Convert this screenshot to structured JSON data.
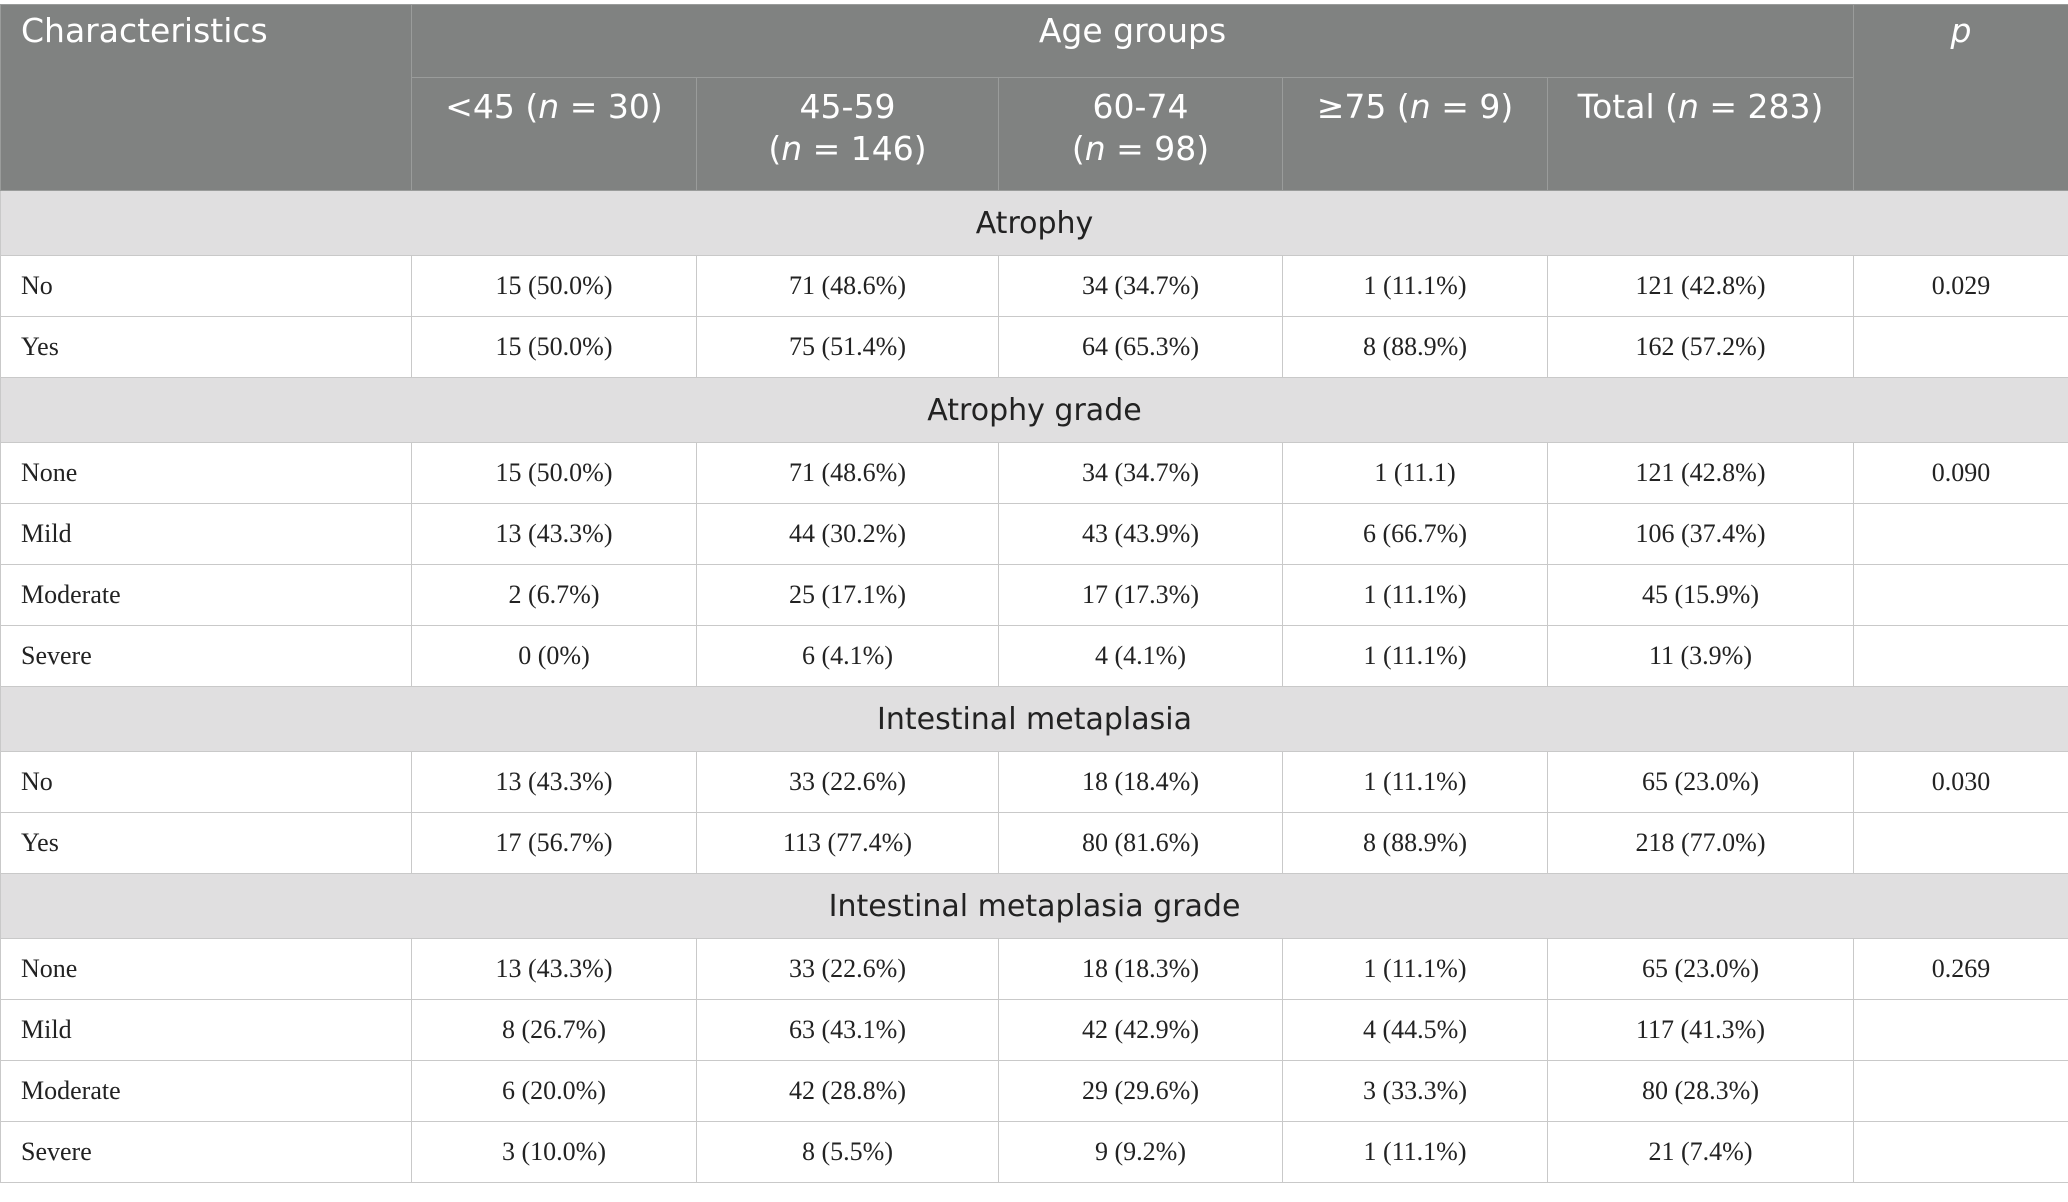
{
  "header": {
    "characteristics": "Characteristics",
    "group_title": "Age groups",
    "p": "p",
    "columns": [
      [
        [
          "<45 (",
          "n",
          " = 30)"
        ]
      ],
      [
        [
          "45-59"
        ],
        [
          "(",
          "n",
          " = 146)"
        ]
      ],
      [
        [
          "60-74"
        ],
        [
          "(",
          "n",
          " = 98)"
        ]
      ],
      [
        [
          "≥75 (",
          "n",
          " = 9)"
        ]
      ],
      [
        [
          "Total (",
          "n",
          " = 283)"
        ]
      ]
    ]
  },
  "sections": [
    {
      "title": "Atrophy",
      "rows": [
        {
          "label": "No",
          "cells": [
            "15 (50.0%)",
            "71 (48.6%)",
            "34 (34.7%)",
            "1 (11.1%)",
            "121 (42.8%)"
          ],
          "p": "0.029"
        },
        {
          "label": "Yes",
          "cells": [
            "15 (50.0%)",
            "75 (51.4%)",
            "64 (65.3%)",
            "8 (88.9%)",
            "162 (57.2%)"
          ]
        }
      ]
    },
    {
      "title": "Atrophy grade",
      "rows": [
        {
          "label": "None",
          "cells": [
            "15 (50.0%)",
            "71 (48.6%)",
            "34 (34.7%)",
            "1 (11.1)",
            "121 (42.8%)"
          ],
          "p": "0.090"
        },
        {
          "label": "Mild",
          "cells": [
            "13 (43.3%)",
            "44 (30.2%)",
            "43 (43.9%)",
            "6 (66.7%)",
            "106 (37.4%)"
          ]
        },
        {
          "label": "Moderate",
          "cells": [
            "2 (6.7%)",
            "25 (17.1%)",
            "17 (17.3%)",
            "1 (11.1%)",
            "45 (15.9%)"
          ]
        },
        {
          "label": "Severe",
          "cells": [
            "0 (0%)",
            "6 (4.1%)",
            "4 (4.1%)",
            "1 (11.1%)",
            "11 (3.9%)"
          ]
        }
      ]
    },
    {
      "title": "Intestinal metaplasia",
      "rows": [
        {
          "label": "No",
          "cells": [
            "13 (43.3%)",
            "33 (22.6%)",
            "18 (18.4%)",
            "1 (11.1%)",
            "65 (23.0%)"
          ],
          "p": "0.030"
        },
        {
          "label": "Yes",
          "cells": [
            "17 (56.7%)",
            "113 (77.4%)",
            "80 (81.6%)",
            "8 (88.9%)",
            "218 (77.0%)"
          ]
        }
      ]
    },
    {
      "title": "Intestinal metaplasia grade",
      "rows": [
        {
          "label": "None",
          "cells": [
            "13 (43.3%)",
            "33 (22.6%)",
            "18 (18.3%)",
            "1 (11.1%)",
            "65 (23.0%)"
          ],
          "p": "0.269"
        },
        {
          "label": "Mild",
          "cells": [
            "8 (26.7%)",
            "63 (43.1%)",
            "42 (42.9%)",
            "4 (44.5%)",
            "117 (41.3%)"
          ]
        },
        {
          "label": "Moderate",
          "cells": [
            "6 (20.0%)",
            "42 (28.8%)",
            "29 (29.6%)",
            "3 (33.3%)",
            "80 (28.3%)"
          ]
        },
        {
          "label": "Severe",
          "cells": [
            "3 (10.0%)",
            "8 (5.5%)",
            "9 (9.2%)",
            "1 (11.1%)",
            "21 (7.4%)"
          ]
        }
      ]
    }
  ]
}
